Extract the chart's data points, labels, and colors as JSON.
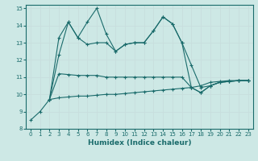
{
  "xlabel": "Humidex (Indice chaleur)",
  "background_color": "#cde8e5",
  "grid_color": "#b0d4d0",
  "line_color": "#1a6b6b",
  "xlim": [
    -0.5,
    23.5
  ],
  "ylim": [
    8,
    15.2
  ],
  "xticks": [
    0,
    1,
    2,
    3,
    4,
    5,
    6,
    7,
    8,
    9,
    10,
    11,
    12,
    13,
    14,
    15,
    16,
    17,
    18,
    19,
    20,
    21,
    22,
    23
  ],
  "yticks": [
    8,
    9,
    10,
    11,
    12,
    13,
    14,
    15
  ],
  "segments": [
    {
      "x": [
        0,
        1,
        2,
        3,
        4,
        5,
        6,
        7,
        8,
        9,
        10,
        11,
        12,
        13,
        14,
        15,
        16,
        17,
        18,
        19,
        20,
        21,
        22,
        23
      ],
      "y": [
        8.5,
        9.0,
        9.7,
        12.3,
        14.2,
        13.3,
        14.2,
        15.0,
        13.5,
        12.5,
        12.9,
        13.0,
        13.0,
        13.7,
        14.5,
        14.1,
        13.0,
        11.7,
        10.4,
        10.5,
        10.7,
        10.75,
        10.8,
        10.8
      ]
    },
    {
      "x": [
        2,
        3,
        4,
        5,
        6,
        7,
        8,
        9,
        10,
        11,
        12,
        13,
        14,
        15,
        16,
        17,
        18,
        19,
        20,
        21,
        22,
        23
      ],
      "y": [
        9.7,
        13.3,
        14.2,
        13.3,
        12.9,
        13.0,
        13.0,
        12.5,
        12.9,
        13.0,
        13.0,
        13.7,
        14.5,
        14.1,
        13.0,
        10.4,
        10.5,
        10.7,
        10.75,
        10.8,
        10.8,
        10.8
      ]
    },
    {
      "x": [
        2,
        3,
        4,
        5,
        6,
        7,
        8,
        9,
        10,
        11,
        12,
        13,
        14,
        15,
        16,
        17,
        18,
        19,
        20,
        21,
        22,
        23
      ],
      "y": [
        9.7,
        11.2,
        11.15,
        11.1,
        11.1,
        11.1,
        11.0,
        11.0,
        11.0,
        11.0,
        11.0,
        11.0,
        11.0,
        11.0,
        11.0,
        10.4,
        10.1,
        10.5,
        10.7,
        10.75,
        10.8,
        10.8
      ]
    },
    {
      "x": [
        2,
        3,
        4,
        5,
        6,
        7,
        8,
        9,
        10,
        11,
        12,
        13,
        14,
        15,
        16,
        17,
        18,
        19,
        20,
        21,
        22,
        23
      ],
      "y": [
        9.7,
        9.8,
        9.85,
        9.9,
        9.9,
        9.95,
        10.0,
        10.0,
        10.05,
        10.1,
        10.15,
        10.2,
        10.25,
        10.3,
        10.35,
        10.4,
        10.1,
        10.5,
        10.7,
        10.75,
        10.8,
        10.8
      ]
    }
  ]
}
